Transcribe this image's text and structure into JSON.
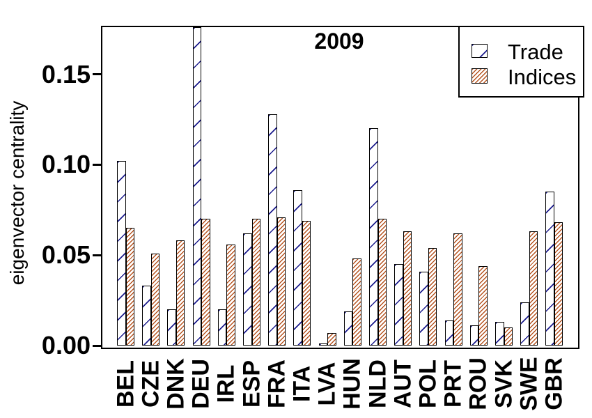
{
  "title": "2009",
  "y_axis_title": "eigenvector centrality",
  "legend": {
    "items": [
      {
        "label": "Trade",
        "swatch": "trade-hatch-white-navy"
      },
      {
        "label": "Indices",
        "swatch": "indices-hatch-orange"
      }
    ],
    "position": "top-right"
  },
  "colors": {
    "background": "#ffffff",
    "bar_border": "#000000",
    "trade_hatch": "#1a1a8c",
    "indices_hatch": "#b5521e",
    "text": "#000000",
    "axis": "#000000"
  },
  "chart_data": {
    "type": "bar",
    "title": "2009",
    "xlabel": "",
    "ylabel": "eigenvector centrality",
    "categories": [
      "BEL",
      "CZE",
      "DNK",
      "DEU",
      "IRL",
      "ESP",
      "FRA",
      "ITA",
      "LVA",
      "HUN",
      "NLD",
      "AUT",
      "POL",
      "PRT",
      "ROU",
      "SVK",
      "SWE",
      "GBR"
    ],
    "series": [
      {
        "name": "Trade",
        "values": [
          0.102,
          0.033,
          0.02,
          0.177,
          0.02,
          0.062,
          0.128,
          0.086,
          0.001,
          0.019,
          0.12,
          0.045,
          0.041,
          0.014,
          0.011,
          0.013,
          0.024,
          0.085
        ]
      },
      {
        "name": "Indices",
        "values": [
          0.065,
          0.051,
          0.058,
          0.07,
          0.056,
          0.07,
          0.071,
          0.069,
          0.007,
          0.048,
          0.07,
          0.063,
          0.054,
          0.062,
          0.044,
          0.01,
          0.063,
          0.068
        ]
      }
    ],
    "ylim": [
      0,
      0.177
    ],
    "yticks": [
      0.0,
      0.05,
      0.1,
      0.15
    ],
    "ytick_labels": [
      "0.00",
      "0.05",
      "0.10",
      "0.15"
    ],
    "grid": false,
    "legend_position": "top-right",
    "bar_style": "diagonal-hatched",
    "clipped_bars": [
      {
        "series": "Trade",
        "category": "DEU",
        "note": "bar clipped at top axis"
      }
    ]
  }
}
